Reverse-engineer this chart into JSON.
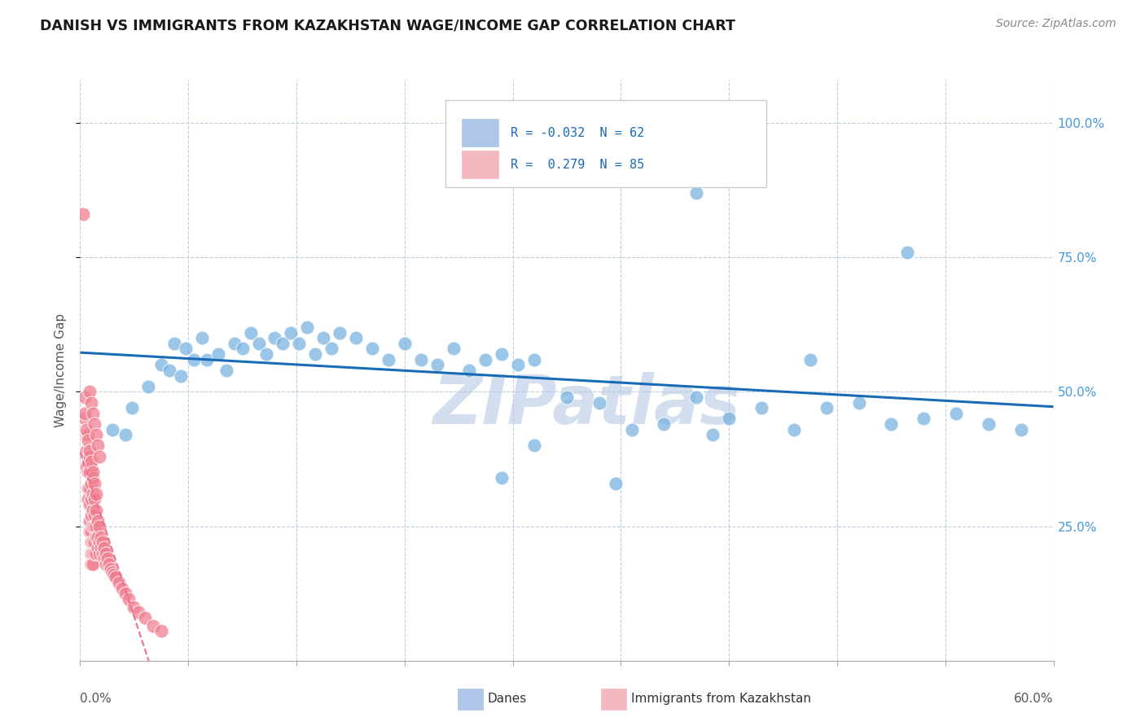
{
  "title": "DANISH VS IMMIGRANTS FROM KAZAKHSTAN WAGE/INCOME GAP CORRELATION CHART",
  "source": "Source: ZipAtlas.com",
  "ylabel": "Wage/Income Gap",
  "y_tick_labels": [
    "25.0%",
    "50.0%",
    "75.0%",
    "100.0%"
  ],
  "y_tick_positions": [
    0.25,
    0.5,
    0.75,
    1.0
  ],
  "x_range": [
    0.0,
    0.6
  ],
  "y_range": [
    0.0,
    1.08
  ],
  "danes_color": "#7ab3e0",
  "immigrants_color": "#f08090",
  "danes_trendline_color": "#1a6bb5",
  "immigrants_trendline_color": "#e87090",
  "watermark": "ZIPatlas",
  "watermark_color": "#ccdaeb",
  "legend_box_color": "#cccccc",
  "danes_x": [
    0.02,
    0.028,
    0.032,
    0.042,
    0.05,
    0.055,
    0.058,
    0.062,
    0.065,
    0.07,
    0.075,
    0.078,
    0.085,
    0.09,
    0.095,
    0.1,
    0.105,
    0.11,
    0.115,
    0.12,
    0.125,
    0.13,
    0.135,
    0.14,
    0.145,
    0.15,
    0.155,
    0.16,
    0.17,
    0.18,
    0.19,
    0.2,
    0.21,
    0.22,
    0.23,
    0.24,
    0.25,
    0.26,
    0.27,
    0.28,
    0.3,
    0.32,
    0.34,
    0.36,
    0.38,
    0.4,
    0.42,
    0.44,
    0.46,
    0.48,
    0.5,
    0.52,
    0.54,
    0.56,
    0.58,
    0.45,
    0.39,
    0.33,
    0.28,
    0.26,
    0.38,
    0.51
  ],
  "danes_y": [
    0.43,
    0.42,
    0.47,
    0.51,
    0.55,
    0.54,
    0.59,
    0.53,
    0.58,
    0.56,
    0.6,
    0.56,
    0.57,
    0.54,
    0.59,
    0.58,
    0.61,
    0.59,
    0.57,
    0.6,
    0.59,
    0.61,
    0.59,
    0.62,
    0.57,
    0.6,
    0.58,
    0.61,
    0.6,
    0.58,
    0.56,
    0.59,
    0.56,
    0.55,
    0.58,
    0.54,
    0.56,
    0.57,
    0.55,
    0.56,
    0.49,
    0.48,
    0.43,
    0.44,
    0.49,
    0.45,
    0.47,
    0.43,
    0.47,
    0.48,
    0.44,
    0.45,
    0.46,
    0.44,
    0.43,
    0.56,
    0.42,
    0.33,
    0.4,
    0.34,
    0.87,
    0.76
  ],
  "immigrants_x": [
    0.002,
    0.003,
    0.003,
    0.004,
    0.004,
    0.004,
    0.005,
    0.005,
    0.005,
    0.005,
    0.005,
    0.006,
    0.006,
    0.006,
    0.006,
    0.006,
    0.006,
    0.007,
    0.007,
    0.007,
    0.007,
    0.007,
    0.007,
    0.007,
    0.007,
    0.008,
    0.008,
    0.008,
    0.008,
    0.008,
    0.008,
    0.008,
    0.009,
    0.009,
    0.009,
    0.009,
    0.009,
    0.01,
    0.01,
    0.01,
    0.01,
    0.011,
    0.011,
    0.011,
    0.012,
    0.012,
    0.012,
    0.013,
    0.013,
    0.014,
    0.014,
    0.015,
    0.015,
    0.016,
    0.016,
    0.017,
    0.018,
    0.019,
    0.02,
    0.021,
    0.022,
    0.024,
    0.026,
    0.028,
    0.03,
    0.033,
    0.036,
    0.04,
    0.045,
    0.05,
    0.003,
    0.004,
    0.005,
    0.006,
    0.007,
    0.008,
    0.009,
    0.01,
    0.006,
    0.007,
    0.008,
    0.009,
    0.01,
    0.011,
    0.012
  ],
  "immigrants_y": [
    0.83,
    0.49,
    0.45,
    0.42,
    0.39,
    0.36,
    0.42,
    0.38,
    0.35,
    0.32,
    0.3,
    0.38,
    0.35,
    0.32,
    0.29,
    0.26,
    0.24,
    0.36,
    0.33,
    0.3,
    0.27,
    0.24,
    0.22,
    0.2,
    0.18,
    0.34,
    0.31,
    0.28,
    0.25,
    0.22,
    0.2,
    0.18,
    0.3,
    0.27,
    0.25,
    0.22,
    0.2,
    0.28,
    0.25,
    0.23,
    0.2,
    0.26,
    0.23,
    0.21,
    0.25,
    0.22,
    0.2,
    0.23,
    0.21,
    0.22,
    0.2,
    0.21,
    0.19,
    0.2,
    0.18,
    0.19,
    0.18,
    0.17,
    0.165,
    0.16,
    0.155,
    0.145,
    0.135,
    0.125,
    0.115,
    0.1,
    0.09,
    0.08,
    0.065,
    0.055,
    0.46,
    0.43,
    0.41,
    0.39,
    0.37,
    0.35,
    0.33,
    0.31,
    0.5,
    0.48,
    0.46,
    0.44,
    0.42,
    0.4,
    0.38
  ]
}
